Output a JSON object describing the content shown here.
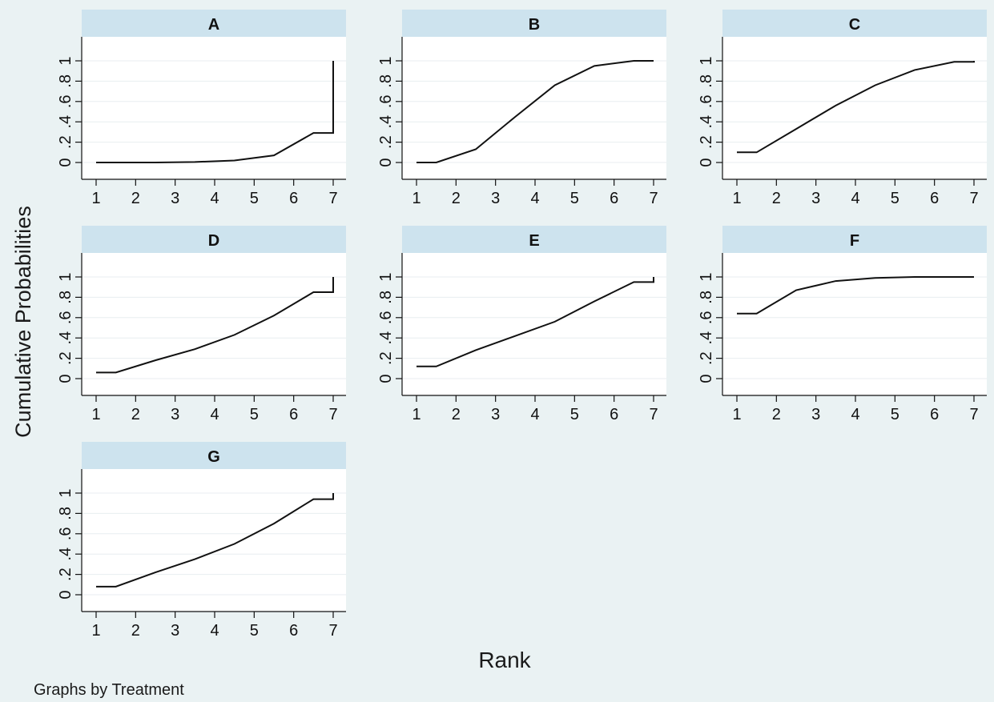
{
  "chart_data": {
    "type": "line",
    "ylabel": "Cumulative Probabilities",
    "xlabel": "Rank",
    "note": "Graphs by Treatment",
    "x_ticks": [
      1,
      2,
      3,
      4,
      5,
      6,
      7
    ],
    "y_ticks": [
      0,
      0.2,
      0.4,
      0.6,
      0.8,
      1
    ],
    "y_tick_labels": [
      "0",
      ".2",
      ".4",
      ".6",
      ".8",
      "1"
    ],
    "xlim": [
      1,
      7
    ],
    "ylim": [
      0,
      1
    ],
    "grid": "horizontal",
    "panels": [
      {
        "title": "A",
        "x": [
          1,
          1.5,
          2.5,
          3.5,
          4.5,
          5.5,
          6.5,
          7,
          7
        ],
        "y": [
          0,
          0,
          0,
          0.005,
          0.02,
          0.07,
          0.29,
          0.29,
          1
        ]
      },
      {
        "title": "B",
        "x": [
          1,
          1.5,
          2.5,
          3.5,
          4.5,
          5.5,
          6.5,
          7,
          7
        ],
        "y": [
          0,
          0,
          0.13,
          0.45,
          0.76,
          0.95,
          1,
          1,
          1
        ]
      },
      {
        "title": "C",
        "x": [
          1,
          1.5,
          2.5,
          3.5,
          4.5,
          5.5,
          6.5,
          7,
          7
        ],
        "y": [
          0.1,
          0.1,
          0.33,
          0.56,
          0.76,
          0.91,
          0.99,
          0.99,
          1
        ]
      },
      {
        "title": "D",
        "x": [
          1,
          1.5,
          2.5,
          3.5,
          4.5,
          5.5,
          6.5,
          7,
          7
        ],
        "y": [
          0.06,
          0.06,
          0.18,
          0.29,
          0.43,
          0.62,
          0.85,
          0.85,
          1
        ]
      },
      {
        "title": "E",
        "x": [
          1,
          1.5,
          2.5,
          3.5,
          4.5,
          5.5,
          6.5,
          7,
          7
        ],
        "y": [
          0.12,
          0.12,
          0.28,
          0.42,
          0.56,
          0.76,
          0.95,
          0.95,
          1
        ]
      },
      {
        "title": "F",
        "x": [
          1,
          1.5,
          2.5,
          3.5,
          4.5,
          5.5,
          6.5,
          7,
          7
        ],
        "y": [
          0.64,
          0.64,
          0.87,
          0.96,
          0.99,
          1,
          1,
          1,
          1
        ]
      },
      {
        "title": "G",
        "x": [
          1,
          1.5,
          2.5,
          3.5,
          4.5,
          5.5,
          6.5,
          7,
          7
        ],
        "y": [
          0.08,
          0.08,
          0.22,
          0.35,
          0.5,
          0.7,
          0.94,
          0.94,
          1
        ]
      }
    ]
  }
}
